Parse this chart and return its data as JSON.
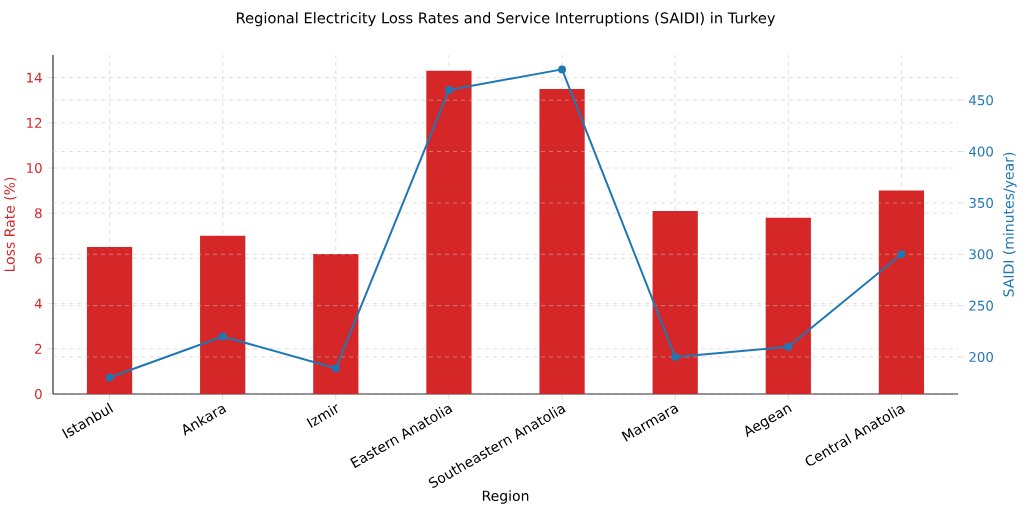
{
  "chart_data": {
    "type": "bar",
    "title": "Regional Electricity Loss Rates and Service Interruptions (SAIDI) in Turkey",
    "xlabel": "Region",
    "ylabel": "Loss Rate (%)",
    "y2label": "SAIDI (minutes/year)",
    "categories": [
      "Istanbul",
      "Ankara",
      "Izmir",
      "Eastern Anatolia",
      "Southeastern Anatolia",
      "Marmara",
      "Aegean",
      "Central Anatolia"
    ],
    "series": [
      {
        "color": "#d62728",
        "values": [
          6.5,
          7.0,
          6.2,
          14.3,
          13.5,
          8.1,
          7.8,
          9.0
        ]
      },
      {
        "type": "line",
        "axis": "y2",
        "color": "#1f77b4",
        "marker": "circle",
        "values": [
          180,
          220,
          189,
          460,
          480,
          200,
          210,
          300
        ]
      }
    ],
    "ylim": [
      0,
      15
    ],
    "yticks": [
      0,
      2,
      4,
      6,
      8,
      10,
      12,
      14
    ],
    "y2lim": [
      164,
      494
    ],
    "y2ticks": [
      200,
      250,
      300,
      350,
      400,
      450
    ],
    "grid": true
  }
}
